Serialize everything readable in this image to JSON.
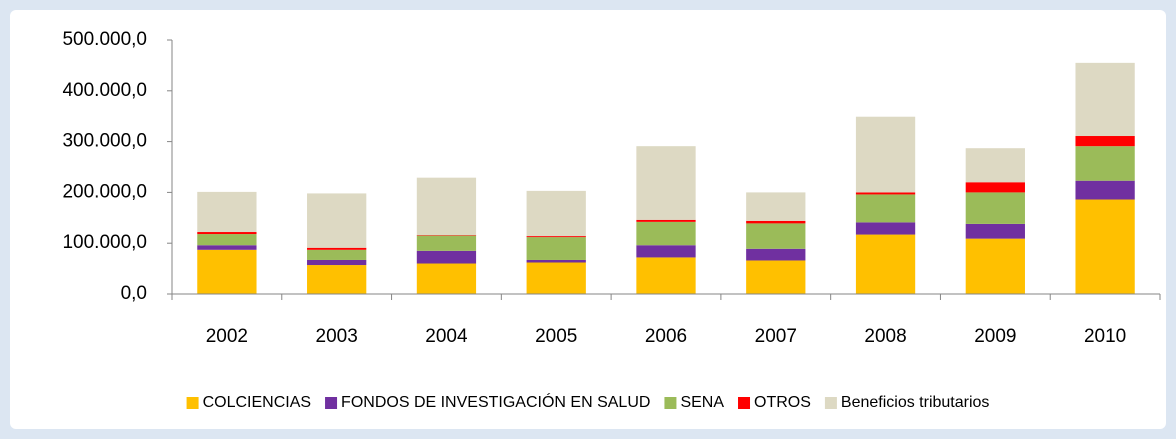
{
  "chart_data": {
    "type": "stacked_bar",
    "categories": [
      "2002",
      "2003",
      "2004",
      "2005",
      "2006",
      "2007",
      "2008",
      "2009",
      "2010"
    ],
    "series": [
      {
        "name": "COLCIENCIAS",
        "color": "#FFC000",
        "values": [
          87000,
          57000,
          60000,
          62000,
          72000,
          66000,
          117000,
          109000,
          186000
        ]
      },
      {
        "name": "FONDOS DE INVESTIGACIÓN EN SALUD",
        "color": "#7030A0",
        "values": [
          9000,
          10000,
          25000,
          5000,
          24000,
          23000,
          24000,
          29000,
          37000
        ]
      },
      {
        "name": "SENA",
        "color": "#9BBB59",
        "values": [
          22000,
          20000,
          30000,
          45000,
          46000,
          50000,
          55000,
          62000,
          68000
        ]
      },
      {
        "name": "OTROS",
        "color": "#FF0000",
        "values": [
          4000,
          4000,
          1000,
          2000,
          4000,
          5000,
          4000,
          20000,
          20000
        ]
      },
      {
        "name": "Beneficios tributarios",
        "color": "#DDD9C3",
        "values": [
          79000,
          107000,
          113000,
          89000,
          145000,
          56000,
          149000,
          67000,
          144000
        ]
      }
    ],
    "ylim": [
      0,
      500000
    ],
    "yticks": [
      {
        "value": 0,
        "label": "0,0"
      },
      {
        "value": 100000,
        "label": "100.000,0"
      },
      {
        "value": 200000,
        "label": "200.000,0"
      },
      {
        "value": 300000,
        "label": "300.000,0"
      },
      {
        "value": 400000,
        "label": "400.000,0"
      },
      {
        "value": 500000,
        "label": "500.000,0"
      }
    ],
    "legend": "bottom"
  }
}
